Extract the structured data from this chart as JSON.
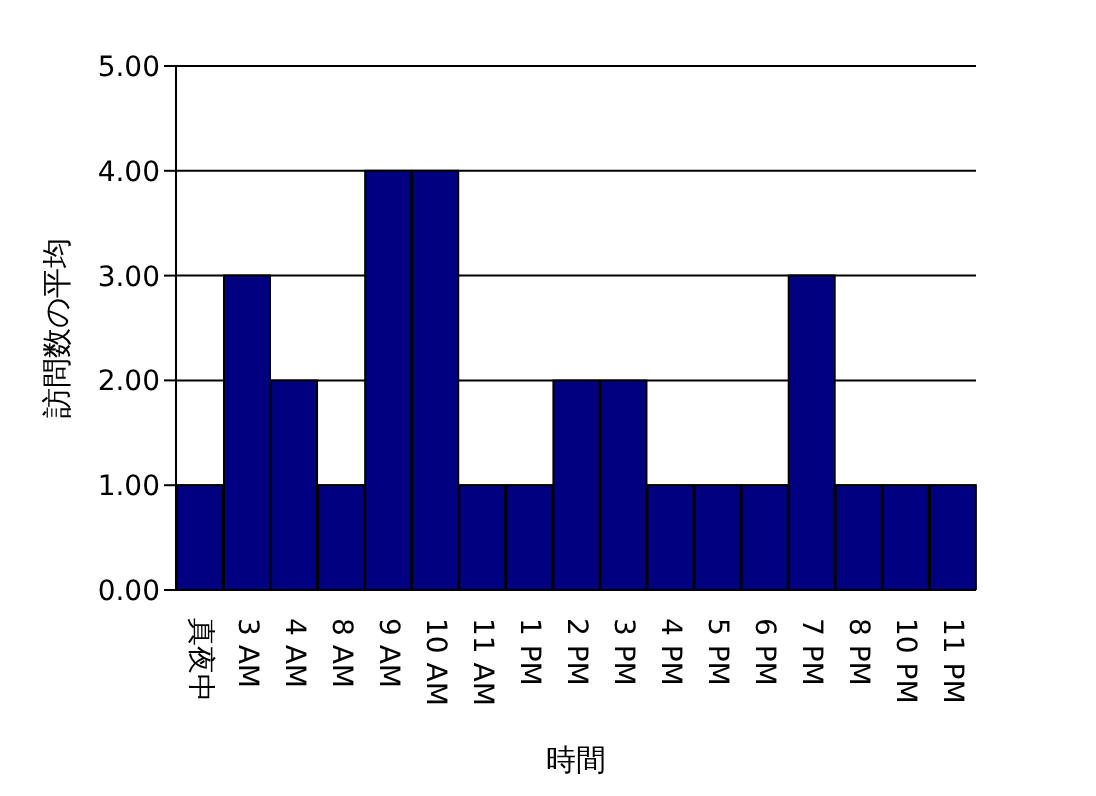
{
  "chart_data": {
    "type": "bar",
    "xlabel": "時間",
    "ylabel": "訪問数の平均",
    "categories": [
      "真夜中",
      "3 AM",
      "4 AM",
      "8 AM",
      "9 AM",
      "10 AM",
      "11 AM",
      "1 PM",
      "2 PM",
      "3 PM",
      "4 PM",
      "5 PM",
      "6 PM",
      "7 PM",
      "8 PM",
      "10 PM",
      "11 PM"
    ],
    "values": [
      1,
      3,
      2,
      1,
      4,
      4,
      1,
      1,
      2,
      2,
      1,
      1,
      1,
      3,
      1,
      1,
      1
    ],
    "color": "#000080",
    "ylim": [
      0,
      5
    ],
    "yticks": [
      {
        "value": 0,
        "label": "0.00"
      },
      {
        "value": 1,
        "label": "1.00"
      },
      {
        "value": 2,
        "label": "2.00"
      },
      {
        "value": 3,
        "label": "3.00"
      },
      {
        "value": 4,
        "label": "4.00"
      },
      {
        "value": 5,
        "label": "5.00"
      }
    ],
    "grid": "y",
    "legend": false
  }
}
